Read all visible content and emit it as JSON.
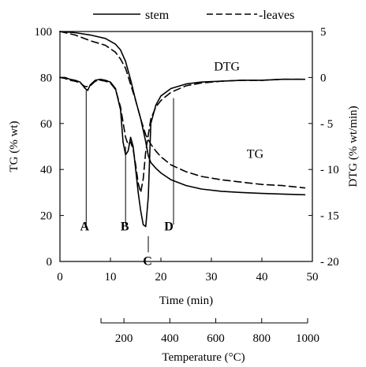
{
  "chart_data": {
    "type": "line",
    "legend": {
      "placement": "top",
      "entries": [
        {
          "series": "stem",
          "label": "stem",
          "style": "solid"
        },
        {
          "series": "leaves",
          "label": "-leaves",
          "style": "dashed"
        }
      ]
    },
    "x_axis": {
      "label": "Time (min)",
      "range": [
        0,
        50
      ],
      "ticks": [
        0,
        10,
        20,
        30,
        40,
        50
      ]
    },
    "x2_axis": {
      "label": "Temperature (°C)",
      "range": [
        100,
        1000
      ],
      "ticks": [
        200,
        400,
        600,
        800,
        1000
      ]
    },
    "y_left": {
      "label": "TG (% wt)",
      "range": [
        0,
        100
      ],
      "ticks": [
        0,
        20,
        40,
        60,
        80,
        100
      ]
    },
    "y_right": {
      "label": "DTG (% wt/min)",
      "range": [
        -20,
        5
      ],
      "ticks": [
        5,
        0,
        -5,
        -10,
        -15,
        -20
      ],
      "tick_labels": [
        "5",
        "0",
        "- 5",
        "- 10",
        "- 15",
        "- 20"
      ]
    },
    "curve_labels": [
      {
        "text": "DTG",
        "x": 30.5,
        "y_left": 83
      },
      {
        "text": "TG",
        "x": 37,
        "y_left": 45
      }
    ],
    "markers": [
      {
        "text": "A",
        "x": 5.2,
        "y_top_left": 74.5,
        "y_bottom_left": 16
      },
      {
        "text": "B",
        "x": 13,
        "y_top_left": 50,
        "y_bottom_left": 16
      },
      {
        "text": "C",
        "x": 17.5,
        "y_top_left": 11,
        "y_bottom_left": 4
      },
      {
        "text": "D",
        "x": 22.5,
        "y_top_left": 71,
        "y_bottom_left": 16
      }
    ],
    "series": [
      {
        "name": "stem",
        "kind": "TG",
        "axis": "left",
        "style": "solid",
        "x": [
          0,
          3,
          6,
          9,
          11,
          12,
          13,
          14,
          15,
          16,
          17,
          17.5,
          18,
          19,
          20,
          22,
          25,
          28,
          32,
          36,
          40,
          44,
          48.5
        ],
        "y": [
          100,
          99.5,
          98.5,
          97,
          94.5,
          92,
          87,
          79,
          70,
          62,
          52,
          46,
          43,
          40.5,
          38.5,
          35.5,
          33,
          31.5,
          30.5,
          30,
          29.6,
          29.3,
          29
        ]
      },
      {
        "name": "leaves",
        "kind": "TG",
        "axis": "left",
        "style": "dashed",
        "x": [
          0,
          3,
          6,
          9,
          11,
          12,
          13,
          14,
          15,
          16,
          17,
          18,
          19,
          20,
          22,
          25,
          28,
          32,
          36,
          40,
          44,
          48.5
        ],
        "y": [
          100,
          98.5,
          96,
          94,
          91,
          88,
          84,
          77,
          70,
          62,
          55,
          51,
          48,
          45.5,
          42,
          39,
          37,
          35.5,
          34.5,
          33.5,
          33,
          32
        ]
      },
      {
        "name": "stem",
        "kind": "DTG",
        "axis": "right",
        "style": "solid",
        "x": [
          0,
          1,
          2,
          3,
          4,
          5,
          5.5,
          6,
          7,
          8,
          9,
          10,
          11,
          12,
          12.5,
          13,
          13.5,
          14,
          14.5,
          15,
          15.5,
          16,
          16.5,
          17,
          17.5,
          18,
          19,
          20,
          22,
          25,
          28,
          32,
          36,
          40,
          44,
          48.5
        ],
        "y": [
          0,
          0,
          -0.2,
          -0.3,
          -0.5,
          -1.2,
          -1.4,
          -0.8,
          -0.3,
          -0.2,
          -0.3,
          -0.5,
          -1.2,
          -3.5,
          -7,
          -8.4,
          -8,
          -6.5,
          -7.5,
          -10,
          -12.5,
          -14.5,
          -16,
          -16.2,
          -13,
          -5,
          -3,
          -2,
          -1.2,
          -0.7,
          -0.5,
          -0.4,
          -0.3,
          -0.3,
          -0.2,
          -0.2
        ]
      },
      {
        "name": "leaves",
        "kind": "DTG",
        "axis": "right",
        "style": "dashed",
        "x": [
          0,
          1,
          2,
          3,
          4,
          5,
          6,
          7,
          8,
          9,
          10,
          11,
          12,
          13,
          13.5,
          14,
          14.5,
          15,
          15.5,
          16,
          16.5,
          17,
          18,
          19,
          20,
          22,
          25,
          28,
          32,
          36,
          40,
          44,
          48.5
        ],
        "y": [
          0,
          -0.1,
          -0.3,
          -0.4,
          -0.6,
          -1,
          -0.9,
          -0.4,
          -0.3,
          -0.4,
          -0.6,
          -1.3,
          -3.2,
          -6.5,
          -7.3,
          -7,
          -7.8,
          -9.5,
          -11.5,
          -12.5,
          -11,
          -8,
          -4.5,
          -3.2,
          -2.5,
          -1.6,
          -0.9,
          -0.6,
          -0.4,
          -0.3,
          -0.3,
          -0.2,
          -0.2
        ]
      }
    ]
  }
}
